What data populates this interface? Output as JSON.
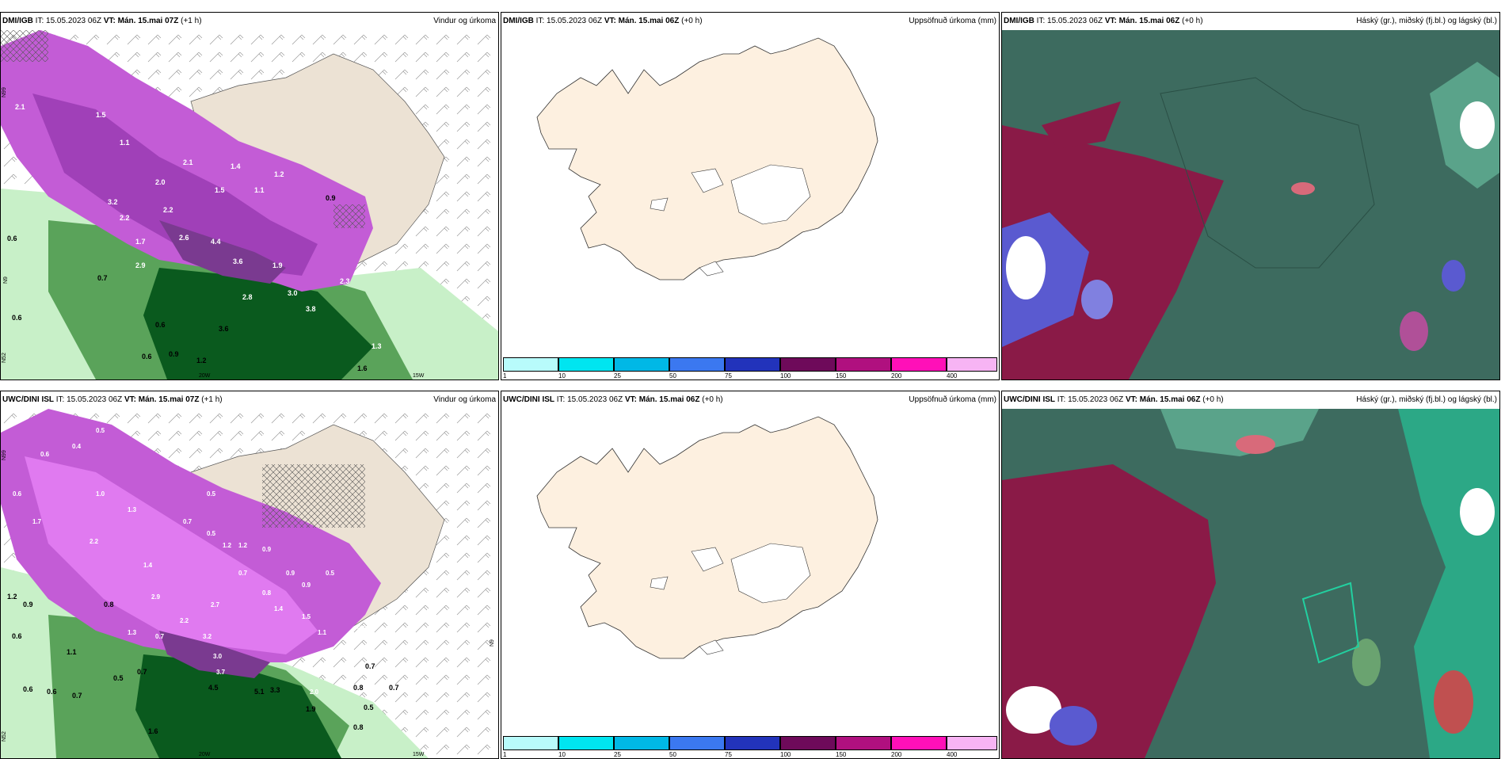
{
  "panels": [
    {
      "model": "DMI/IGB",
      "it_label": "IT:",
      "it": "15.05.2023 06Z",
      "vt_label": "VT:",
      "vt": "Mán. 15.mai 07Z",
      "lead": "(+1 h)",
      "title": "Vindur og úrkoma",
      "lon_labels": [
        "20W",
        "15W"
      ],
      "lat_labels": [
        "N99",
        "N9",
        "N52"
      ],
      "values": [
        "2.1",
        "1.5",
        "1.1",
        "2.1",
        "1.4",
        "2.0",
        "1.5",
        "1.1",
        "1.2",
        "2.6",
        "3.2",
        "2.2",
        "2.2",
        "1.7",
        "2.9",
        "3.6",
        "4.4",
        "1.9",
        "3.0",
        "2.3",
        "2.8",
        "3.8",
        "1.3",
        "0.6",
        "0.7",
        "0.6",
        "0.6",
        "0.6",
        "0.9",
        "1.2",
        "3.6",
        "1.6",
        "0.9"
      ]
    },
    {
      "model": "DMI/IGB",
      "it_label": "IT:",
      "it": "15.05.2023 06Z",
      "vt_label": "VT:",
      "vt": "Mán. 15.mai 06Z",
      "lead": "(+0 h)",
      "title": "Uppsöfnuð úrkoma (mm)",
      "colorbar": {
        "ticks": [
          "1",
          "10",
          "25",
          "50",
          "75",
          "100",
          "150",
          "200",
          "400"
        ],
        "colors": [
          "#b8fbfb",
          "#00e5f0",
          "#00b8e6",
          "#3b78f0",
          "#2233bb",
          "#6e0a5a",
          "#b0107f",
          "#ff10b8",
          "#f7b4f4"
        ]
      }
    },
    {
      "model": "DMI/IGB",
      "it_label": "IT:",
      "it": "15.05.2023 06Z",
      "vt_label": "VT:",
      "vt": "Mán. 15.mai 06Z",
      "lead": "(+0 h)",
      "title": "Háský (gr.), miðský (fj.bl.) og lágský (bl.)"
    },
    {
      "model": "UWC/DINI ISL",
      "it_label": "IT:",
      "it": "15.05.2023 06Z",
      "vt_label": "VT:",
      "vt": "Mán. 15.mai 07Z",
      "lead": "(+1 h)",
      "title": "Vindur og úrkoma",
      "lon_labels": [
        "20W",
        "15W"
      ],
      "lat_labels": [
        "N99",
        "N9",
        "N52"
      ],
      "values": [
        "0.5",
        "0.4",
        "0.6",
        "1.0",
        "0.5",
        "1.3",
        "0.7",
        "1.7",
        "0.5",
        "0.6",
        "2.2",
        "1.2",
        "1.2",
        "0.9",
        "1.4",
        "0.9",
        "0.5",
        "2.9",
        "3.2",
        "2.7",
        "1.4",
        "1.5",
        "1.1",
        "2.2",
        "0.9",
        "0.8",
        "0.7",
        "1.3",
        "0.7",
        "3.7",
        "0.5",
        "3.0",
        "2.0",
        "0.8",
        "1.9",
        "0.5",
        "4.5",
        "5.1",
        "3.3",
        "0.7",
        "0.6",
        "0.7",
        "0.7",
        "0.8",
        "0.5",
        "0.9",
        "1.1",
        "0.7",
        "0.6",
        "0.6",
        "0.8",
        "1.2",
        "1.6"
      ]
    },
    {
      "model": "UWC/DINI ISL",
      "it_label": "IT:",
      "it": "15.05.2023 06Z",
      "vt_label": "VT:",
      "vt": "Mán. 15.mai 06Z",
      "lead": "(+0 h)",
      "title": "Uppsöfnuð úrkoma (mm)",
      "colorbar": {
        "ticks": [
          "1",
          "10",
          "25",
          "50",
          "75",
          "100",
          "150",
          "200",
          "400"
        ],
        "colors": [
          "#b8fbfb",
          "#00e5f0",
          "#00b8e6",
          "#3b78f0",
          "#2233bb",
          "#6e0a5a",
          "#b0107f",
          "#ff10b8",
          "#f7b4f4"
        ]
      }
    },
    {
      "model": "UWC/DINI ISL",
      "it_label": "IT:",
      "it": "15.05.2023 06Z",
      "vt_label": "VT:",
      "vt": "Mán. 15.mai 06Z",
      "lead": "(+0 h)",
      "title": "Háský (gr.), miðský (fj.bl.) og lágský (bl.)"
    }
  ],
  "colors": {
    "land": "#fdf0e0",
    "land_wind": "#ece2d4",
    "precip_light": "#c8f0c8",
    "precip_mid": "#5aa35a",
    "precip_dark": "#0a5a1e",
    "precip_purple": "#c35cd6",
    "precip_violet": "#e07af0",
    "cloud_base": "#3d6b5f",
    "cloud_red": "#8a1a47",
    "cloud_blue": "#5a5ad0",
    "cloud_cyan": "#22d0a0"
  }
}
